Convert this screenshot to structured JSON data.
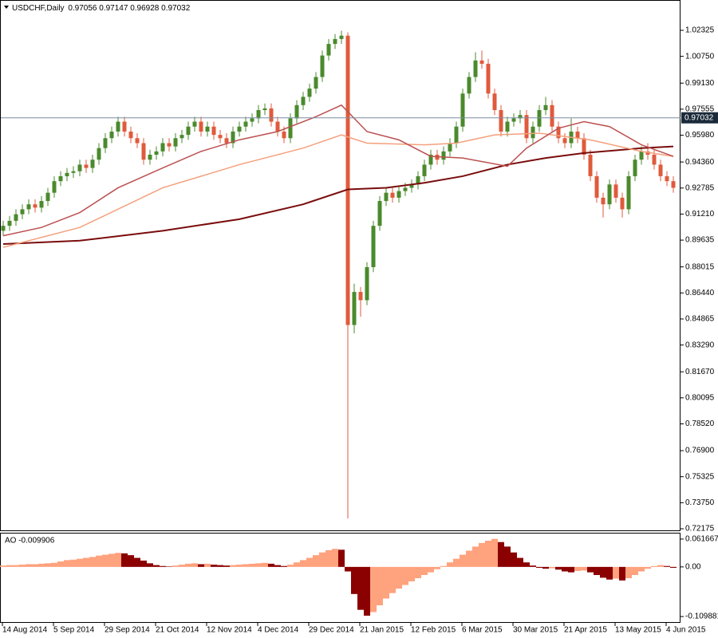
{
  "chart_data": [
    {
      "type": "candlestick",
      "title": "USDCHF,Daily",
      "header_values": [
        0.97056,
        0.97147,
        0.96928,
        0.97032
      ],
      "categories": [
        "14 Aug 2014",
        null,
        null,
        null,
        null,
        null,
        null,
        null,
        "5 Sep 2014",
        null,
        null,
        null,
        null,
        null,
        null,
        null,
        "29 Sep 2014",
        null,
        null,
        null,
        null,
        null,
        null,
        null,
        "21 Oct 2014",
        null,
        null,
        null,
        null,
        null,
        null,
        null,
        "12 Nov 2014",
        null,
        null,
        null,
        null,
        null,
        null,
        null,
        "4 Dec 2014",
        null,
        null,
        null,
        null,
        null,
        null,
        null,
        "29 Dec 2014",
        null,
        null,
        null,
        null,
        null,
        null,
        null,
        "21 Jan 2015",
        null,
        null,
        null,
        null,
        null,
        null,
        null,
        "12 Feb 2015",
        null,
        null,
        null,
        null,
        null,
        null,
        null,
        "6 Mar 2015",
        null,
        null,
        null,
        null,
        null,
        null,
        null,
        "30 Mar 2015",
        null,
        null,
        null,
        null,
        null,
        null,
        null,
        "21 Apr 2015",
        null,
        null,
        null,
        null,
        null,
        null,
        null,
        "13 May 2015",
        null,
        null,
        null,
        null,
        null,
        null,
        null,
        "4 Jun 2015",
        null
      ],
      "open": [
        0.902,
        0.905,
        0.908,
        0.912,
        0.915,
        0.918,
        0.916,
        0.92,
        0.925,
        0.932,
        0.935,
        0.937,
        0.938,
        0.942,
        0.94,
        0.945,
        0.952,
        0.958,
        0.962,
        0.968,
        0.962,
        0.958,
        0.955,
        0.945,
        0.948,
        0.95,
        0.955,
        0.953,
        0.958,
        0.96,
        0.965,
        0.968,
        0.962,
        0.965,
        0.96,
        0.958,
        0.955,
        0.962,
        0.965,
        0.968,
        0.97,
        0.975,
        0.976,
        0.968,
        0.962,
        0.958,
        0.97,
        0.978,
        0.983,
        0.988,
        0.995,
        1.008,
        1.015,
        1.018,
        1.02,
        0.845,
        0.865,
        0.86,
        0.88,
        0.905,
        0.92,
        0.925,
        0.922,
        0.926,
        0.928,
        0.93,
        0.935,
        0.942,
        0.948,
        0.945,
        0.95,
        0.955,
        0.965,
        0.985,
        0.995,
        1.005,
        1.003,
        0.985,
        0.975,
        0.962,
        0.968,
        0.97,
        0.972,
        0.958,
        0.965,
        0.975,
        0.978,
        0.965,
        0.958,
        0.955,
        0.962,
        0.958,
        0.948,
        0.935,
        0.922,
        0.918,
        0.93,
        0.922,
        0.915,
        0.935,
        0.945,
        0.95,
        0.948,
        0.942,
        0.935,
        0.932
      ],
      "high": [
        0.908,
        0.911,
        0.915,
        0.918,
        0.921,
        0.921,
        0.923,
        0.928,
        0.935,
        0.938,
        0.94,
        0.941,
        0.945,
        0.945,
        0.948,
        0.955,
        0.961,
        0.965,
        0.971,
        0.971,
        0.965,
        0.961,
        0.958,
        0.951,
        0.953,
        0.958,
        0.958,
        0.961,
        0.963,
        0.968,
        0.971,
        0.971,
        0.968,
        0.968,
        0.963,
        0.961,
        0.965,
        0.968,
        0.971,
        0.973,
        0.978,
        0.979,
        0.979,
        0.971,
        0.965,
        0.973,
        0.981,
        0.986,
        0.991,
        0.998,
        1.011,
        1.018,
        1.021,
        1.023,
        1.022,
        0.87,
        0.868,
        0.883,
        0.908,
        0.923,
        0.928,
        0.928,
        0.929,
        0.931,
        0.933,
        0.938,
        0.945,
        0.951,
        0.951,
        0.953,
        0.958,
        0.968,
        0.988,
        0.998,
        1.01,
        1.011,
        1.006,
        0.988,
        0.978,
        0.971,
        0.973,
        0.975,
        0.975,
        0.968,
        0.978,
        0.983,
        0.981,
        0.968,
        0.961,
        0.97,
        0.965,
        0.961,
        0.951,
        0.938,
        0.925,
        0.933,
        0.933,
        0.925,
        0.938,
        0.948,
        0.953,
        0.955,
        0.951,
        0.945,
        0.938,
        0.935
      ],
      "low": [
        0.899,
        0.902,
        0.905,
        0.909,
        0.912,
        0.913,
        0.913,
        0.917,
        0.922,
        0.929,
        0.932,
        0.934,
        0.935,
        0.937,
        0.937,
        0.942,
        0.949,
        0.955,
        0.959,
        0.959,
        0.955,
        0.952,
        0.942,
        0.942,
        0.945,
        0.947,
        0.95,
        0.95,
        0.955,
        0.957,
        0.962,
        0.959,
        0.959,
        0.957,
        0.955,
        0.952,
        0.952,
        0.959,
        0.962,
        0.965,
        0.967,
        0.972,
        0.965,
        0.959,
        0.955,
        0.955,
        0.967,
        0.975,
        0.98,
        0.985,
        0.992,
        1.005,
        1.012,
        1.015,
        0.728,
        0.84,
        0.85,
        0.857,
        0.877,
        0.902,
        0.917,
        0.919,
        0.919,
        0.923,
        0.925,
        0.927,
        0.932,
        0.939,
        0.942,
        0.942,
        0.947,
        0.952,
        0.962,
        0.982,
        0.992,
        1.0,
        0.982,
        0.972,
        0.959,
        0.959,
        0.965,
        0.967,
        0.955,
        0.955,
        0.962,
        0.972,
        0.962,
        0.955,
        0.952,
        0.952,
        0.955,
        0.945,
        0.932,
        0.919,
        0.91,
        0.915,
        0.919,
        0.91,
        0.912,
        0.932,
        0.942,
        0.945,
        0.939,
        0.932,
        0.929,
        0.925
      ],
      "close": [
        0.905,
        0.908,
        0.912,
        0.915,
        0.918,
        0.916,
        0.92,
        0.925,
        0.932,
        0.935,
        0.937,
        0.938,
        0.942,
        0.94,
        0.945,
        0.952,
        0.958,
        0.962,
        0.968,
        0.962,
        0.958,
        0.955,
        0.945,
        0.948,
        0.95,
        0.955,
        0.953,
        0.958,
        0.96,
        0.965,
        0.968,
        0.962,
        0.965,
        0.96,
        0.958,
        0.955,
        0.962,
        0.965,
        0.968,
        0.97,
        0.975,
        0.976,
        0.968,
        0.962,
        0.958,
        0.97,
        0.978,
        0.983,
        0.988,
        0.995,
        1.008,
        1.015,
        1.018,
        1.02,
        0.845,
        0.865,
        0.86,
        0.88,
        0.905,
        0.92,
        0.925,
        0.922,
        0.926,
        0.928,
        0.93,
        0.935,
        0.942,
        0.948,
        0.945,
        0.95,
        0.955,
        0.965,
        0.985,
        0.995,
        1.005,
        1.003,
        0.985,
        0.975,
        0.962,
        0.968,
        0.97,
        0.972,
        0.958,
        0.965,
        0.975,
        0.978,
        0.965,
        0.958,
        0.955,
        0.962,
        0.958,
        0.948,
        0.935,
        0.922,
        0.918,
        0.93,
        0.922,
        0.915,
        0.935,
        0.945,
        0.95,
        0.948,
        0.942,
        0.935,
        0.932,
        0.928
      ],
      "up_color": "#4a8a2c",
      "down_color": "#e05a3c",
      "series": [
        {
          "color": "#7a0c0c",
          "x": [
            0,
            12,
            25,
            37,
            47,
            54,
            60,
            66,
            72,
            79,
            85,
            91,
            100,
            105
          ],
          "values": [
            0.894,
            0.896,
            0.902,
            0.909,
            0.918,
            0.927,
            0.928,
            0.931,
            0.935,
            0.942,
            0.946,
            0.949,
            0.952,
            0.953
          ]
        },
        {
          "color": "#f4a07c",
          "x": [
            0,
            12,
            25,
            37,
            47,
            53,
            57,
            66,
            71,
            77,
            84,
            92,
            100,
            105
          ],
          "values": [
            0.892,
            0.904,
            0.928,
            0.942,
            0.952,
            0.96,
            0.955,
            0.954,
            0.955,
            0.96,
            0.961,
            0.957,
            0.95,
            0.947
          ]
        },
        {
          "color": "#bc5050",
          "x": [
            0,
            6,
            12,
            18,
            25,
            31,
            37,
            43,
            49,
            53,
            57,
            62,
            67,
            72,
            79,
            82,
            87,
            91,
            95,
            100,
            105
          ],
          "values": [
            0.899,
            0.904,
            0.913,
            0.928,
            0.94,
            0.95,
            0.957,
            0.962,
            0.971,
            0.978,
            0.962,
            0.957,
            0.947,
            0.946,
            0.941,
            0.952,
            0.964,
            0.968,
            0.965,
            0.954,
            0.947
          ]
        }
      ],
      "current_price": 0.97032,
      "ylim": [
        0.7208,
        1.0411
      ],
      "yticks": [
        1.02325,
        {
          "value": 1.0075,
          "label": "1.00750"
        },
        {
          "value": 0.9913,
          "label": "0.99130"
        },
        0.97555,
        {
          "value": 0.9598,
          "label": "0.95980"
        },
        {
          "value": 0.9436,
          "label": "0.94360"
        },
        0.92785,
        {
          "value": 0.9121,
          "label": "0.91210"
        },
        0.89635,
        0.88015,
        {
          "value": 0.8644,
          "label": "0.86440"
        },
        0.84865,
        {
          "value": 0.8329,
          "label": "0.83290"
        },
        {
          "value": 0.8167,
          "label": "0.81670"
        },
        0.80095,
        {
          "value": 0.7852,
          "label": "0.78520"
        },
        {
          "value": 0.769,
          "label": "0.76900"
        },
        0.75325,
        {
          "value": 0.7375,
          "label": "0.73750"
        },
        0.72175
      ]
    },
    {
      "type": "histogram",
      "title": "AO -0.009906",
      "values": [
        0.003,
        0.004,
        0.004,
        0.005,
        0.006,
        0.006,
        0.007,
        0.008,
        0.009,
        0.012,
        0.015,
        0.016,
        0.018,
        0.02,
        0.022,
        0.025,
        0.027,
        0.029,
        0.031,
        0.03,
        0.026,
        0.02,
        0.014,
        0.008,
        0.004,
        0.002,
        0.001,
        0.003,
        0.005,
        0.007,
        0.008,
        0.006,
        0.007,
        0.005,
        0.004,
        0.003,
        0.004,
        0.005,
        0.006,
        0.007,
        0.008,
        0.009,
        0.007,
        0.004,
        0.002,
        0.005,
        0.01,
        0.015,
        0.02,
        0.026,
        0.032,
        0.037,
        0.04,
        0.038,
        -0.01,
        -0.06,
        -0.095,
        -0.108,
        -0.1,
        -0.085,
        -0.07,
        -0.058,
        -0.048,
        -0.04,
        -0.032,
        -0.025,
        -0.018,
        -0.012,
        -0.005,
        0.002,
        0.01,
        0.018,
        0.027,
        0.036,
        0.045,
        0.053,
        0.058,
        0.062,
        0.055,
        0.045,
        0.032,
        0.02,
        0.01,
        0.003,
        -0.002,
        -0.004,
        -0.003,
        -0.006,
        -0.01,
        -0.012,
        -0.009,
        -0.008,
        -0.012,
        -0.018,
        -0.024,
        -0.028,
        -0.026,
        -0.03,
        -0.025,
        -0.018,
        -0.01,
        -0.004,
        0.002,
        0.004,
        0.002,
        -0.002
      ],
      "up_color": "#ffa27e",
      "down_color": "#8b0000",
      "ylim": [
        -0.1221,
        0.0739
      ],
      "yticks": [
        0.061667,
        {
          "value": 0,
          "label": "0.00"
        },
        -0.109881
      ]
    }
  ]
}
